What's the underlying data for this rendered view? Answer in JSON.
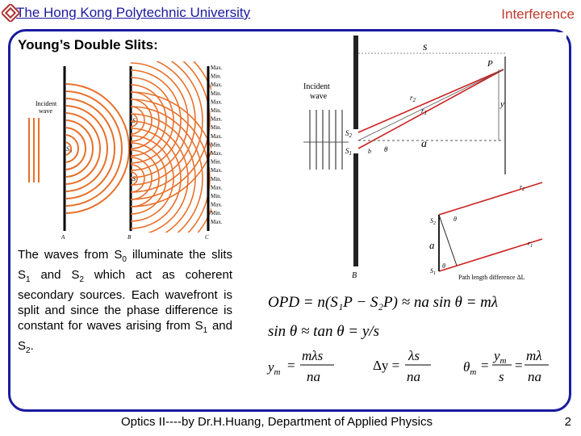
{
  "header": {
    "university": "The Hong Kong Polytechnic University",
    "topic": "Interference"
  },
  "slide": {
    "title": "Young’s Double Slits:",
    "body": {
      "p1_a": "The waves from S",
      "p1_a_sub": "0",
      "p1_b": " illuminate the slits S",
      "p1_b_sub": "1",
      "p1_c": " and S",
      "p1_c_sub": "2",
      "p1_d": " which act as coherent secondary sources. Each wavefront is split and since the phase difference is constant for waves arising from S",
      "p1_d_sub": "1",
      "p1_e": " and S",
      "p1_e_sub": "2",
      "p1_f": "."
    }
  },
  "figure_left": {
    "incident_label_1": "Incident",
    "incident_label_2": "wave",
    "s0": "S",
    "s1": "S",
    "s2": "S",
    "s0_sub": "0",
    "s1_sub": "1",
    "s2_sub": "2",
    "max_label": "Max.",
    "min_label": "Min.",
    "screen_labels": [
      "A",
      "B",
      "C"
    ]
  },
  "figure_right": {
    "top_s": "s",
    "incident_label_1": "Incident",
    "incident_label_2": "wave",
    "p": "P",
    "r1": "r",
    "r2": "r",
    "r1_sub": "1",
    "r2_sub": "2",
    "y": "y",
    "a": "a",
    "theta": "θ",
    "b": "b",
    "B": "B",
    "s1": "S",
    "s2": "S",
    "s1_sub": "1",
    "s2_sub": "2",
    "inset_a": "a",
    "inset_path": "Path length difference ΔL"
  },
  "equations": {
    "opd": "OPD = n(S₁P − S₂P) ≈ na sin θ = mλ",
    "approx": "sin θ ≈ tan θ = y/s",
    "ym_num": "mλs",
    "ym_den": "na",
    "ym_lhs": "y",
    "ym_lhs_sub": "m",
    "dy_num": "λs",
    "dy_den": "na",
    "dy_lhs": "Δy =",
    "th_lhs": "θ",
    "th_lhs_sub": "m",
    "th_mid_num": "y",
    "th_mid_num_sub": "m",
    "th_mid_den": "s",
    "th_rhs_num": "mλ",
    "th_rhs_den": "na",
    "eq": "="
  },
  "footer": {
    "text": "Optics II----by Dr.H.Huang, Department of Applied Physics",
    "page": "2"
  },
  "colors": {
    "title_blue": "#1a1aa0",
    "topic_red": "#c0392b",
    "wave_orange": "#e8702a",
    "ray_red": "#cc2222"
  }
}
